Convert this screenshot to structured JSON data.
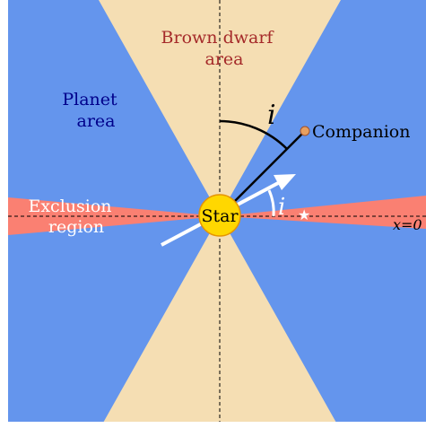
{
  "brown_dwarf_label": [
    "Brown dwarf",
    "area"
  ],
  "planet_label": [
    "Planet",
    "area"
  ],
  "exclusion_label": [
    "Exclusion",
    "region"
  ],
  "star_label": "Star",
  "companion_label": "Companion",
  "inclination_label": "i",
  "inclination_star_label": "i",
  "axis_label": "x=0"
}
